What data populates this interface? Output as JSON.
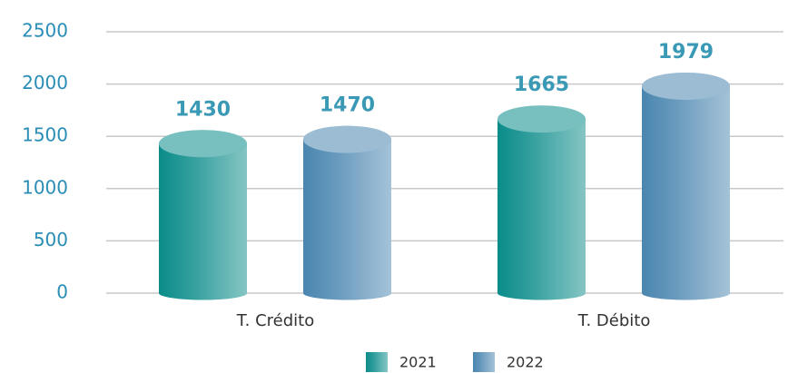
{
  "chart_data": {
    "type": "bar",
    "categories": [
      "T. Crédito",
      "T. Débito"
    ],
    "series": [
      {
        "name": "2021",
        "color": "#0a8c8a",
        "values": [
          1430,
          1665
        ]
      },
      {
        "name": "2022",
        "color": "#4a86b0",
        "values": [
          1470,
          1979
        ]
      }
    ],
    "ylim": [
      0,
      2500
    ],
    "yticks": [
      0,
      500,
      1000,
      1500,
      2000,
      2500
    ],
    "grid": true,
    "legend": "bottom"
  }
}
